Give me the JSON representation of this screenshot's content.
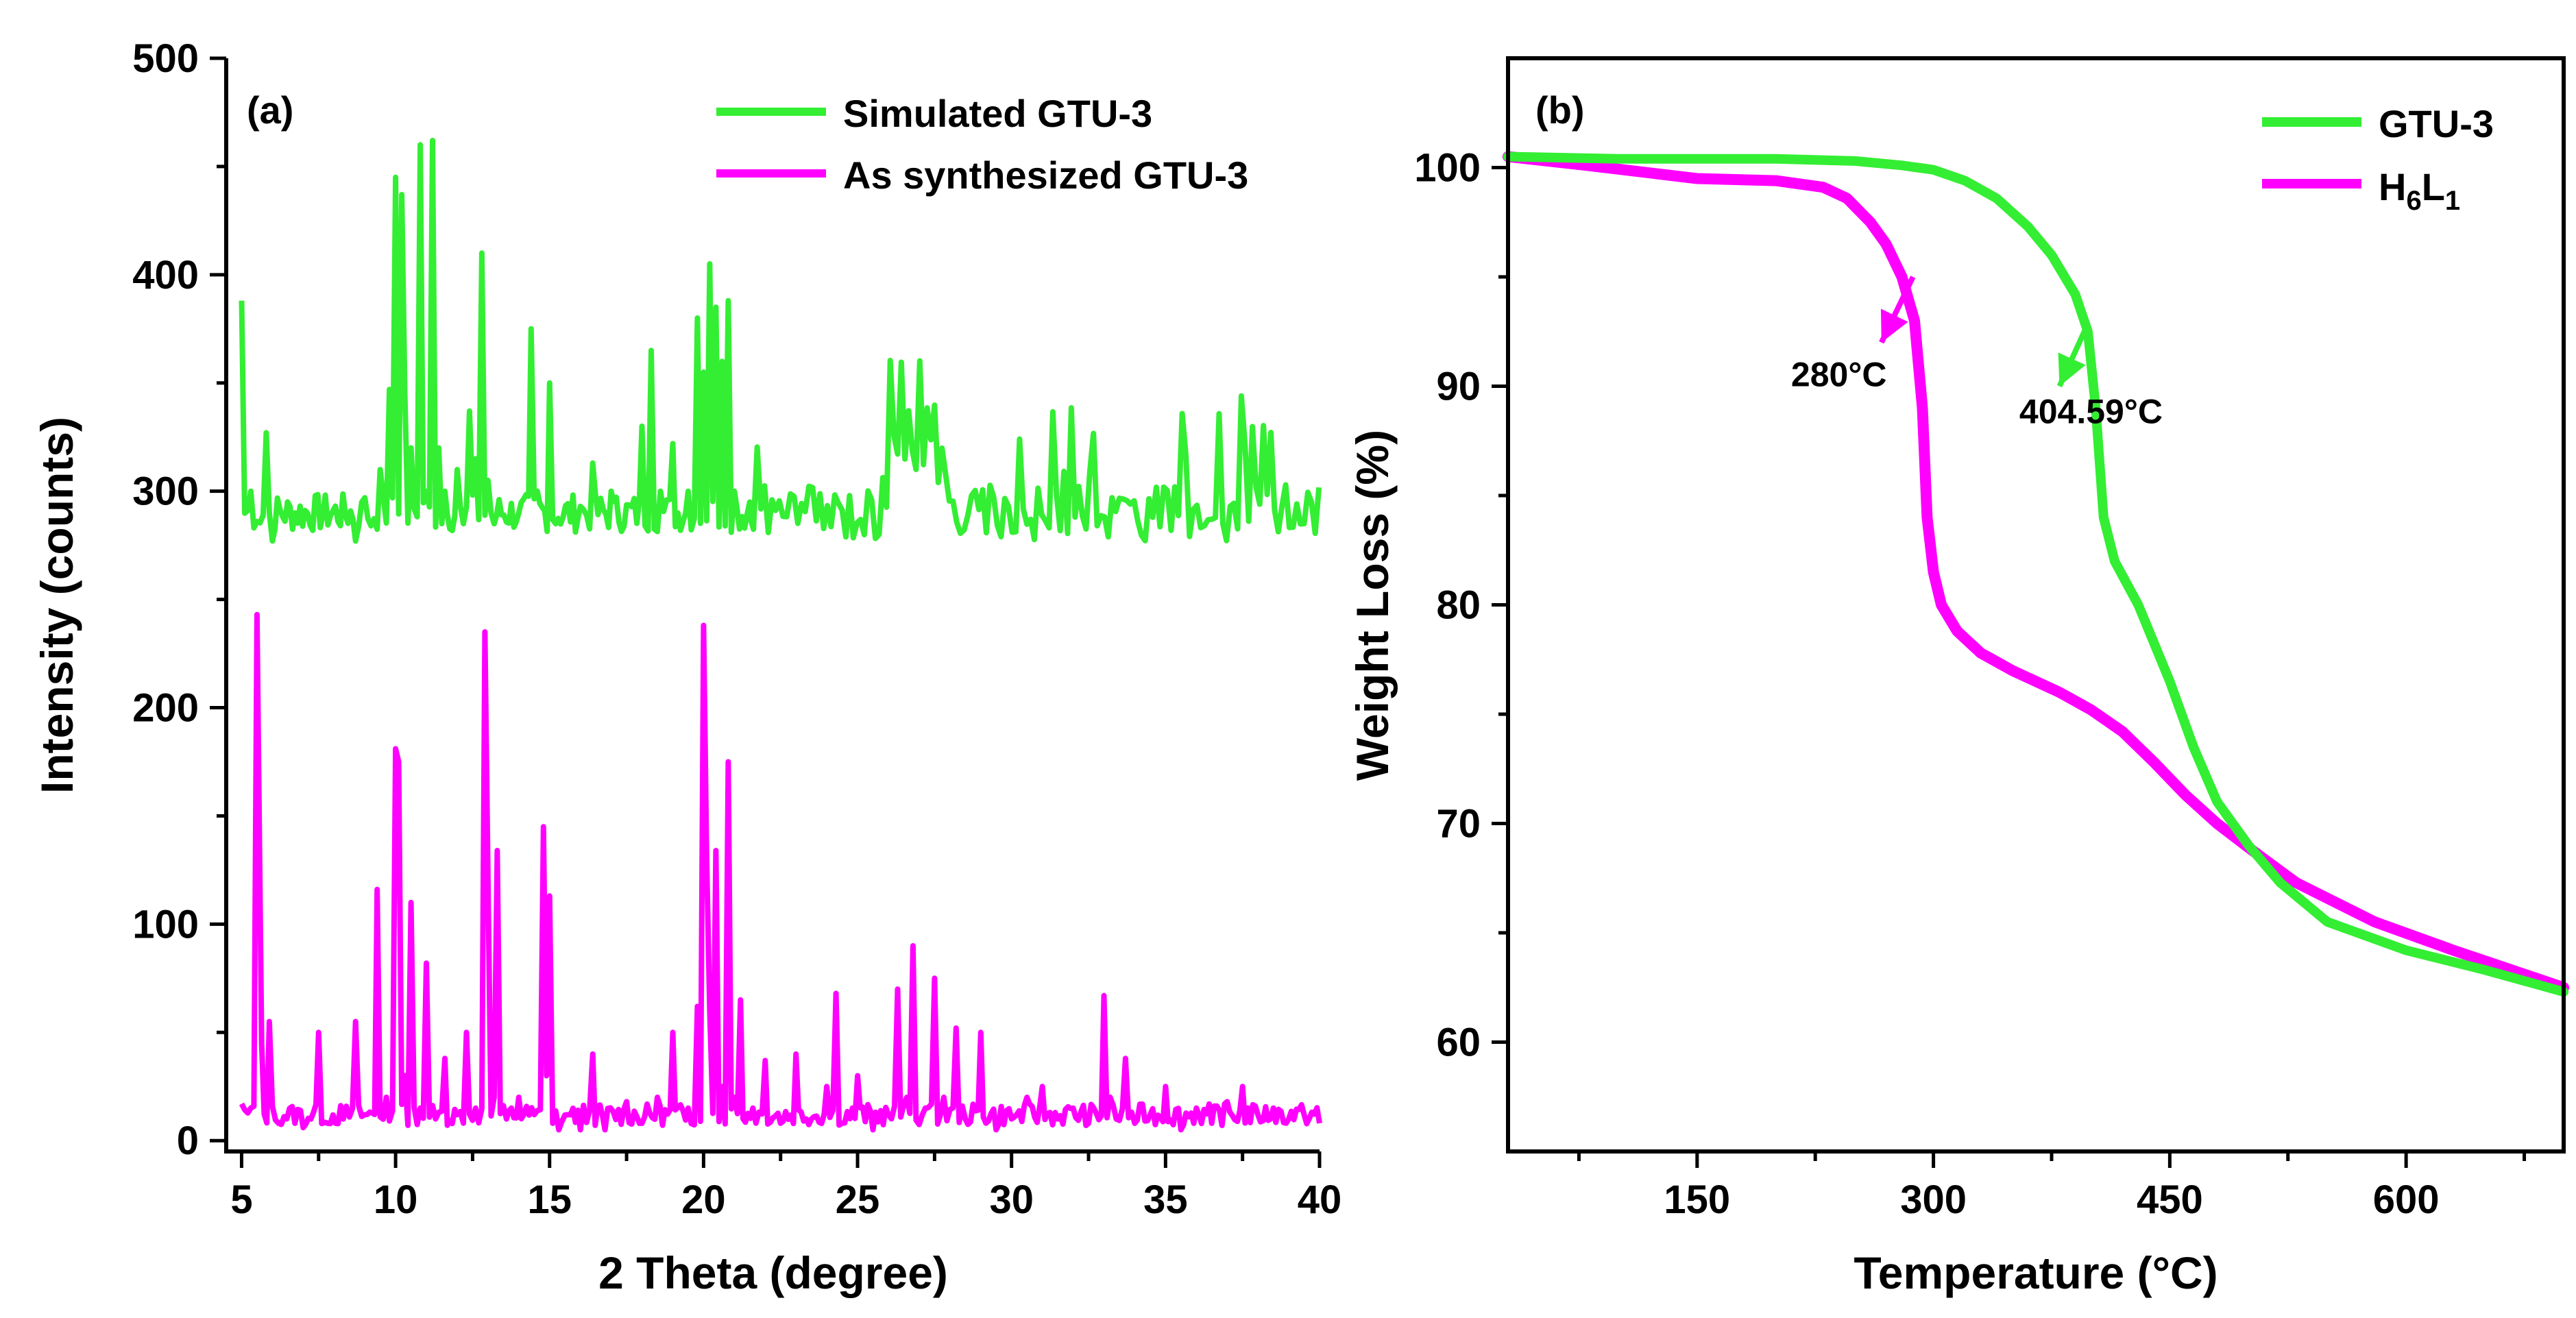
{
  "colors": {
    "green": "#33ee33",
    "magenta": "#ff00ff",
    "axis": "#000000"
  },
  "chart_data": [
    {
      "type": "line",
      "panel_label": "(a)",
      "title": "",
      "xlabel": "2 Theta (degree)",
      "ylabel": "Intensity (counts)",
      "xlim": [
        4.5,
        40
      ],
      "ylim": [
        -5,
        500
      ],
      "xticks": [
        5,
        10,
        15,
        20,
        25,
        30,
        35,
        40
      ],
      "xtick_labels": [
        "5",
        "10",
        "15",
        "20",
        "25",
        "30",
        "35",
        "40"
      ],
      "yticks": [
        0,
        100,
        200,
        300,
        400,
        500
      ],
      "ytick_labels": [
        "0",
        "100",
        "200",
        "300",
        "400",
        "500"
      ],
      "legend_position": "top-right",
      "series": [
        {
          "name": "Simulated GTU-3",
          "color": "#33ee33",
          "baseline": 290,
          "noise_start": 21.5,
          "x": [
            5.0,
            5.3,
            5.5,
            5.8,
            6.0,
            8.7,
            9.0,
            9.2,
            9.5,
            9.8,
            10.0,
            10.2,
            10.3,
            10.5,
            10.8,
            11.0,
            11.2,
            11.4,
            11.6,
            12.0,
            12.2,
            12.4,
            12.6,
            12.8,
            13.0,
            13.2,
            14.0,
            14.4,
            14.6,
            15.0,
            15.2,
            16.0,
            16.4,
            17.0,
            18.0,
            18.3,
            18.6,
            19.0,
            19.5,
            19.8,
            20.0,
            20.2,
            20.4,
            20.6,
            20.8,
            21.0,
            21.5
          ],
          "y": [
            388,
            300,
            286,
            327,
            277,
            277,
            297,
            284,
            310,
            347,
            445,
            437,
            345,
            320,
            460,
            300,
            462,
            320,
            300,
            310,
            285,
            337,
            315,
            410,
            305,
            285,
            290,
            375,
            300,
            350,
            285,
            293,
            313,
            300,
            330,
            365,
            300,
            322,
            300,
            380,
            355,
            405,
            385,
            360,
            388,
            300,
            295
          ]
        },
        {
          "name": "As synthesized GTU-3",
          "color": "#ff00ff",
          "baseline": 12,
          "x": [
            5.0,
            5.3,
            5.5,
            5.65,
            5.9,
            6.2,
            7.0,
            7.5,
            7.8,
            8.3,
            8.7,
            9.0,
            9.4,
            9.7,
            10.0,
            10.1,
            10.3,
            10.5,
            10.8,
            11.0,
            11.3,
            11.6,
            12.0,
            12.3,
            12.6,
            12.9,
            13.0,
            13.2,
            13.3,
            13.6,
            14.0,
            14.5,
            14.8,
            14.9,
            15.0,
            15.1,
            15.3,
            15.6,
            16.0,
            16.4,
            16.8,
            17.5,
            18.0,
            18.5,
            19.0,
            19.5,
            19.8,
            20.0,
            20.1,
            20.2,
            20.4,
            20.6,
            20.8,
            21.0,
            21.2,
            21.6,
            22.0,
            22.5,
            23.0,
            23.5,
            24.0,
            24.3,
            24.5,
            25.0,
            25.5,
            26.0,
            26.3,
            26.6,
            26.8,
            27.2,
            27.5,
            27.8,
            28.2,
            28.5,
            29.0,
            29.5,
            30.0,
            30.5,
            31.0,
            31.5,
            32.0,
            32.5,
            33.0,
            33.2,
            33.4,
            33.7,
            34.0,
            34.5,
            35.0,
            35.5,
            36.0,
            36.5,
            37.0,
            37.5,
            38.0,
            38.5,
            39.0,
            39.5,
            40.0
          ],
          "y": [
            17,
            15,
            243,
            45,
            55,
            8,
            6,
            50,
            8,
            10,
            55,
            12,
            116,
            20,
            181,
            175,
            30,
            110,
            15,
            82,
            10,
            38,
            12,
            50,
            15,
            235,
            120,
            20,
            134,
            10,
            20,
            12,
            145,
            30,
            113,
            8,
            5,
            12,
            5,
            40,
            5,
            18,
            8,
            20,
            50,
            15,
            62,
            238,
            130,
            60,
            134,
            25,
            175,
            20,
            65,
            15,
            37,
            8,
            40,
            10,
            25,
            68,
            8,
            30,
            5,
            12,
            70,
            20,
            90,
            15,
            75,
            20,
            52,
            10,
            50,
            5,
            10,
            20,
            25,
            10,
            15,
            8,
            67,
            20,
            10,
            38,
            8,
            12,
            25,
            5,
            15,
            8,
            18,
            25,
            12,
            15,
            10,
            12,
            8
          ]
        }
      ]
    },
    {
      "type": "line",
      "panel_label": "(b)",
      "title": "",
      "xlabel": "Temperature (°C)",
      "ylabel": "Weight Loss (%)",
      "xlim": [
        30,
        700
      ],
      "ylim": [
        55,
        105
      ],
      "xticks": [
        150,
        300,
        450,
        600
      ],
      "xtick_labels": [
        "150",
        "300",
        "450",
        "600"
      ],
      "yticks": [
        60,
        70,
        80,
        90,
        100
      ],
      "ytick_labels": [
        "60",
        "70",
        "80",
        "90",
        "100"
      ],
      "legend_position": "top-right",
      "series": [
        {
          "name": "GTU-3",
          "color": "#33ee33",
          "x": [
            30,
            100,
            150,
            200,
            250,
            280,
            300,
            320,
            340,
            360,
            375,
            390,
            398,
            403,
            408,
            415,
            430,
            450,
            465,
            480,
            500,
            520,
            550,
            600,
            650,
            700
          ],
          "y": [
            100.5,
            100.4,
            100.4,
            100.4,
            100.3,
            100.1,
            99.9,
            99.4,
            98.6,
            97.3,
            96.0,
            94.2,
            92.5,
            89.0,
            84.0,
            82.0,
            80.0,
            76.5,
            73.5,
            71.0,
            69.0,
            67.3,
            65.5,
            64.2,
            63.3,
            62.3
          ]
        },
        {
          "name": "H6L1",
          "color": "#ff00ff",
          "x": [
            30,
            80,
            150,
            200,
            230,
            245,
            260,
            270,
            280,
            288,
            293,
            296,
            300,
            305,
            315,
            330,
            350,
            380,
            400,
            420,
            440,
            460,
            480,
            500,
            530,
            580,
            630,
            700
          ],
          "y": [
            100.5,
            100.1,
            99.5,
            99.4,
            99.1,
            98.6,
            97.5,
            96.5,
            95.0,
            93.0,
            89.0,
            84.0,
            81.5,
            80.0,
            78.8,
            77.8,
            77.0,
            76.0,
            75.2,
            74.2,
            72.8,
            71.3,
            70.0,
            68.9,
            67.3,
            65.5,
            64.2,
            62.5
          ]
        }
      ],
      "legend_labels": [
        {
          "text": "GTU-3"
        },
        {
          "main": "H",
          "sub1": "6",
          "mid": "L",
          "sub2": "1"
        }
      ],
      "annotations": [
        {
          "text": "280°C",
          "x": 240,
          "y": 90.0,
          "arrow_from": [
            287,
            95.0
          ],
          "arrow_to": [
            267,
            92.0
          ],
          "color": "#ff00ff"
        },
        {
          "text": "404.59°C",
          "x": 400,
          "y": 88.3,
          "arrow_from": [
            397,
            92.7
          ],
          "arrow_to": [
            380,
            90.0
          ],
          "color": "#33ee33"
        }
      ]
    }
  ]
}
